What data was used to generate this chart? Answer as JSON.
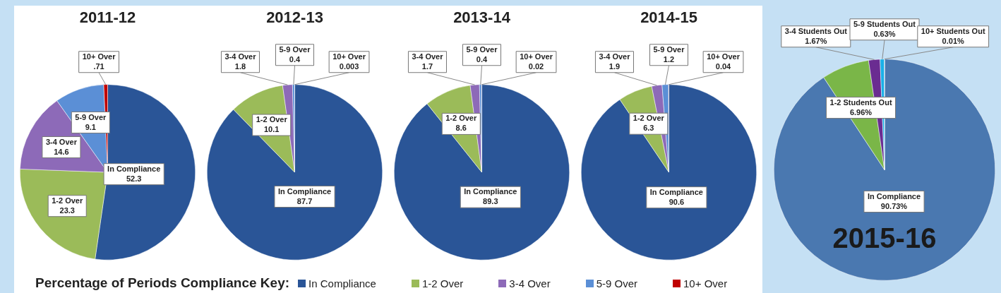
{
  "chart_data": [
    {
      "type": "pie",
      "title": "2011-12",
      "categories": [
        "In Compliance",
        "1-2 Over",
        "3-4 Over",
        "5-9 Over",
        "10+ Over"
      ],
      "values": [
        52.3,
        23.3,
        14.6,
        9.1,
        0.71
      ],
      "value_labels": [
        "52.3",
        "23.3",
        "14.6",
        "9.1",
        ".71"
      ],
      "colors": [
        "#2a5597",
        "#9bbb59",
        "#8d6ab8",
        "#5b8fd6",
        "#c00000"
      ],
      "legend": "bottom",
      "legend_title": "Percentage of Periods Compliance Key:"
    },
    {
      "type": "pie",
      "title": "2012-13",
      "categories": [
        "In Compliance",
        "1-2 Over",
        "3-4 Over",
        "5-9 Over",
        "10+ Over"
      ],
      "values": [
        87.7,
        10.1,
        1.8,
        0.4,
        0.003
      ],
      "value_labels": [
        "87.7",
        "10.1",
        "1.8",
        "0.4",
        "0.003"
      ],
      "colors": [
        "#2a5597",
        "#9bbb59",
        "#8d6ab8",
        "#5b8fd6",
        "#c00000"
      ]
    },
    {
      "type": "pie",
      "title": "2013-14",
      "categories": [
        "In Compliance",
        "1-2 Over",
        "3-4 Over",
        "5-9 Over",
        "10+ Over"
      ],
      "values": [
        89.3,
        8.6,
        1.7,
        0.4,
        0.02
      ],
      "value_labels": [
        "89.3",
        "8.6",
        "1.7",
        "0.4",
        "0.02"
      ],
      "colors": [
        "#2a5597",
        "#9bbb59",
        "#8d6ab8",
        "#5b8fd6",
        "#c00000"
      ]
    },
    {
      "type": "pie",
      "title": "2014-15",
      "categories": [
        "In Compliance",
        "1-2 Over",
        "3-4 Over",
        "5-9 Over",
        "10+ Over"
      ],
      "values": [
        90.6,
        6.3,
        1.9,
        1.2,
        0.04
      ],
      "value_labels": [
        "90.6",
        "6.3",
        "1.9",
        "1.2",
        "0.04"
      ],
      "colors": [
        "#2a5597",
        "#9bbb59",
        "#8d6ab8",
        "#5b8fd6",
        "#c00000"
      ]
    },
    {
      "type": "pie",
      "title": "2015-16",
      "categories": [
        "In Compliance",
        "1-2 Students Out",
        "3-4 Students Out",
        "5-9 Students Out",
        "10+ Students Out"
      ],
      "values": [
        90.73,
        6.96,
        1.67,
        0.63,
        0.01
      ],
      "value_labels": [
        "90.73%",
        "6.96%",
        "1.67%",
        "0.63%",
        "0.01%"
      ],
      "colors": [
        "#4a78b0",
        "#7ab648",
        "#6a2c91",
        "#1ab0e8",
        "#1f3f7a"
      ]
    }
  ]
}
